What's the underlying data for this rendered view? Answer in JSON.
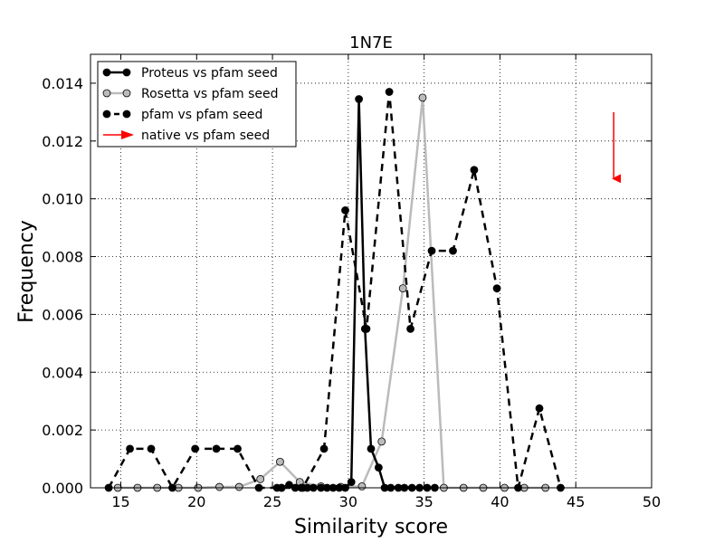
{
  "chart_data": {
    "type": "line",
    "title": "1N7E",
    "xlabel": "Similarity score",
    "ylabel": "Frequency",
    "xlim": [
      13,
      50
    ],
    "ylim": [
      0,
      0.015
    ],
    "xticks": [
      15,
      20,
      25,
      30,
      35,
      40,
      45,
      50
    ],
    "yticks": [
      0.0,
      0.002,
      0.004,
      0.006,
      0.008,
      0.01,
      0.012,
      0.014
    ],
    "ytick_labels": [
      "0.000",
      "0.002",
      "0.004",
      "0.006",
      "0.008",
      "0.010",
      "0.012",
      "0.014"
    ],
    "grid": true,
    "legend_position": "top-left",
    "series": [
      {
        "name": "Proteus vs pfam seed",
        "style": "solid",
        "color": "#000000",
        "marker_fill": "#000000",
        "x": [
          25.3,
          25.6,
          26.1,
          26.5,
          26.9,
          27.3,
          27.7,
          28.2,
          28.6,
          29.0,
          29.4,
          29.8,
          30.2,
          30.7,
          31.1,
          31.5,
          32.0,
          32.4,
          32.8,
          33.3,
          33.7,
          34.2,
          34.7,
          35.2,
          35.7
        ],
        "y": [
          0.0,
          0.0,
          0.0001,
          0.0,
          0.0,
          0.0,
          0.0,
          0.0,
          0.0,
          0.0,
          0.0,
          0.0,
          0.0002,
          0.01345,
          0.0055,
          0.00135,
          0.0007,
          0.0,
          0.0,
          0.0,
          0.0,
          0.0,
          0.0,
          0.0,
          0.0
        ]
      },
      {
        "name": "Rosetta vs pfam seed",
        "style": "solid",
        "color": "#bbbbbb",
        "marker_fill": "#bbbbbb",
        "x": [
          14.8,
          16.1,
          17.4,
          18.8,
          20.1,
          21.5,
          22.8,
          24.2,
          25.5,
          26.8,
          28.2,
          29.5,
          30.9,
          32.2,
          33.6,
          34.9,
          36.3,
          37.6,
          38.9,
          40.3,
          41.6,
          43.0
        ],
        "y": [
          0.0,
          0.0,
          0.0,
          0.0,
          0.0,
          3e-05,
          3e-05,
          0.0003,
          0.0009,
          0.0002,
          5e-05,
          3e-05,
          5e-05,
          0.0016,
          0.0069,
          0.0135,
          0.0,
          0.0,
          0.0,
          0.0,
          0.0,
          0.0
        ]
      },
      {
        "name": "pfam vs pfam seed",
        "style": "dashed",
        "color": "#000000",
        "marker_fill": "#000000",
        "x": [
          14.2,
          15.6,
          17.0,
          18.4,
          19.9,
          21.3,
          22.7,
          24.1,
          25.6,
          27.0,
          28.4,
          29.8,
          31.2,
          32.7,
          34.1,
          35.5,
          36.9,
          38.3,
          39.8,
          41.2,
          42.6,
          44.0
        ],
        "y": [
          0.0,
          0.00135,
          0.00135,
          0.0,
          0.00135,
          0.00135,
          0.00135,
          0.0,
          0.0,
          0.0,
          0.00135,
          0.0096,
          0.0055,
          0.0137,
          0.0055,
          0.0082,
          0.0082,
          0.011,
          0.0069,
          0.0,
          0.00275,
          0.0
        ]
      }
    ],
    "native": {
      "name": "native vs pfam seed",
      "color": "#ff0000",
      "x": 47.5,
      "y_start": 0.013,
      "y_end": 0.0107
    }
  }
}
